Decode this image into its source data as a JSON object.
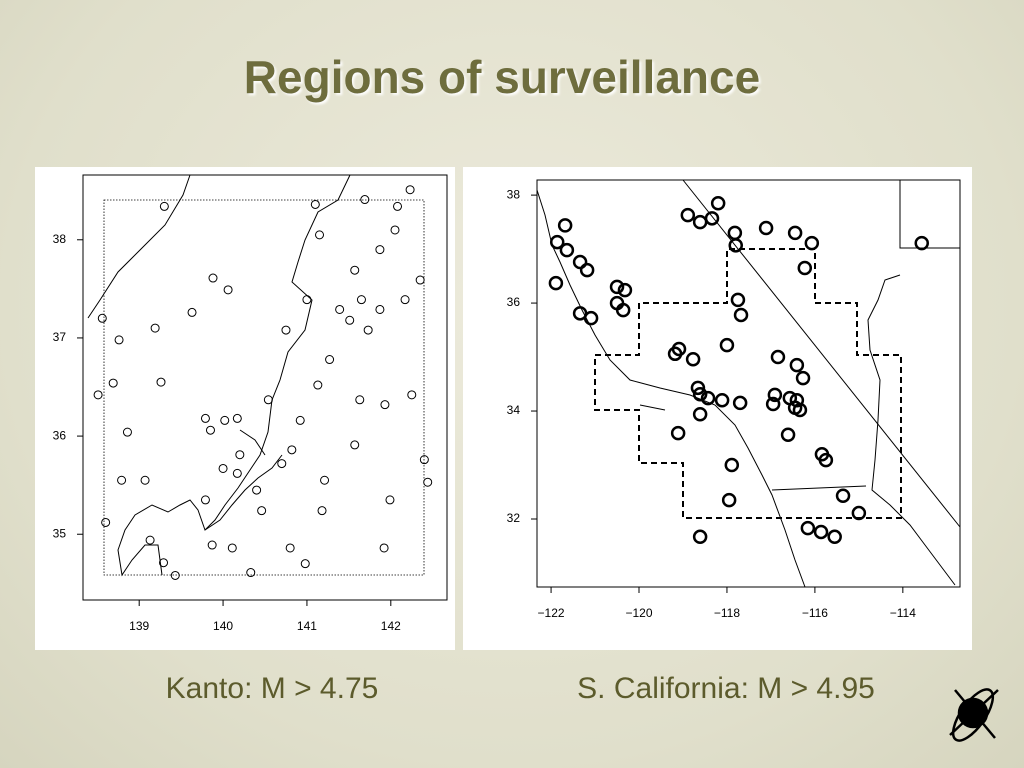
{
  "title": "Regions of surveillance",
  "chart_data": [
    {
      "type": "scatter",
      "caption": "Kanto: M > 4.75",
      "color": "#000000",
      "xlim": [
        138.33,
        142.67
      ],
      "ylim": [
        34.33,
        38.66
      ],
      "xticks": [
        139,
        140,
        141,
        142
      ],
      "yticks": [
        35,
        36,
        37,
        38
      ],
      "x": [
        138.56,
        138.76,
        138.69,
        138.51,
        138.86,
        138.79,
        139.07,
        138.6,
        139.13,
        139.29,
        139.43,
        139.3,
        139.88,
        140.06,
        139.63,
        139.19,
        139.26,
        139.79,
        139.85,
        140.02,
        140.17,
        140.2,
        140.0,
        140.17,
        139.79,
        139.87,
        140.11,
        140.4,
        140.46,
        140.33,
        140.7,
        140.82,
        140.92,
        140.54,
        140.75,
        141.0,
        141.1,
        141.15,
        141.13,
        141.27,
        141.39,
        141.51,
        141.57,
        141.65,
        141.73,
        141.87,
        142.05,
        142.23,
        141.87,
        142.17,
        142.35,
        141.63,
        141.93,
        142.25,
        142.4,
        141.99,
        141.57,
        141.21,
        141.18,
        140.8,
        140.98,
        141.92,
        142.44,
        141.69,
        142.08
      ],
      "values": [
        37.2,
        36.98,
        36.54,
        36.42,
        36.04,
        35.55,
        35.55,
        35.12,
        34.94,
        34.71,
        34.58,
        38.34,
        37.61,
        37.49,
        37.26,
        37.1,
        36.55,
        36.18,
        36.06,
        36.16,
        36.18,
        35.81,
        35.67,
        35.62,
        35.35,
        34.89,
        34.86,
        35.45,
        35.24,
        34.61,
        35.72,
        35.86,
        36.16,
        36.37,
        37.08,
        37.39,
        38.36,
        38.05,
        36.52,
        36.78,
        37.29,
        37.18,
        37.69,
        37.39,
        37.08,
        37.9,
        38.1,
        38.51,
        37.29,
        37.39,
        37.59,
        36.37,
        36.32,
        36.42,
        35.76,
        35.35,
        35.91,
        35.55,
        35.24,
        34.86,
        34.7,
        34.86,
        35.53,
        38.41,
        38.34
      ]
    },
    {
      "type": "scatter",
      "caption": "S. California: M > 4.95",
      "color": "#000000",
      "xlim": [
        -122.32,
        -112.7
      ],
      "ylim": [
        30.74,
        38.28
      ],
      "xticks": [
        {
          "value": -122,
          "label": "−122"
        },
        {
          "value": -120,
          "label": "−120"
        },
        {
          "value": -118,
          "label": "−118"
        },
        {
          "value": -116,
          "label": "−116"
        },
        {
          "value": -114,
          "label": "−114"
        }
      ],
      "yticks": [
        32,
        34,
        36,
        38
      ],
      "x": [
        -121.86,
        -121.68,
        -121.64,
        -121.34,
        -121.18,
        -121.89,
        -121.34,
        -121.09,
        -120.5,
        -120.32,
        -120.5,
        -120.36,
        -119.09,
        -119.18,
        -118.77,
        -118.66,
        -118.61,
        -118.43,
        -118.61,
        -118.11,
        -117.7,
        -118.0,
        -117.75,
        -117.68,
        -117.8,
        -117.82,
        -118.2,
        -118.89,
        -118.61,
        -118.34,
        -117.11,
        -116.45,
        -116.07,
        -116.23,
        -116.84,
        -116.91,
        -116.95,
        -116.57,
        -116.41,
        -116.34,
        -116.45,
        -116.61,
        -116.41,
        -116.27,
        -115.84,
        -115.75,
        -119.11,
        -117.89,
        -117.95,
        -118.61,
        -116.16,
        -115.86,
        -115.55,
        -115.36,
        -115.0,
        -113.57
      ],
      "values": [
        37.13,
        37.44,
        36.98,
        36.76,
        36.61,
        36.37,
        35.81,
        35.72,
        36.3,
        36.24,
        36.0,
        35.87,
        35.15,
        35.06,
        34.96,
        34.43,
        34.31,
        34.24,
        33.94,
        34.2,
        34.15,
        35.22,
        36.06,
        35.78,
        37.07,
        37.3,
        37.85,
        37.63,
        37.5,
        37.57,
        37.39,
        37.3,
        37.11,
        36.65,
        35.0,
        34.3,
        34.13,
        34.24,
        34.2,
        34.02,
        34.06,
        33.56,
        34.85,
        34.61,
        33.2,
        33.09,
        33.59,
        33.0,
        32.35,
        31.67,
        31.83,
        31.76,
        31.67,
        32.43,
        32.11,
        37.11
      ]
    }
  ]
}
